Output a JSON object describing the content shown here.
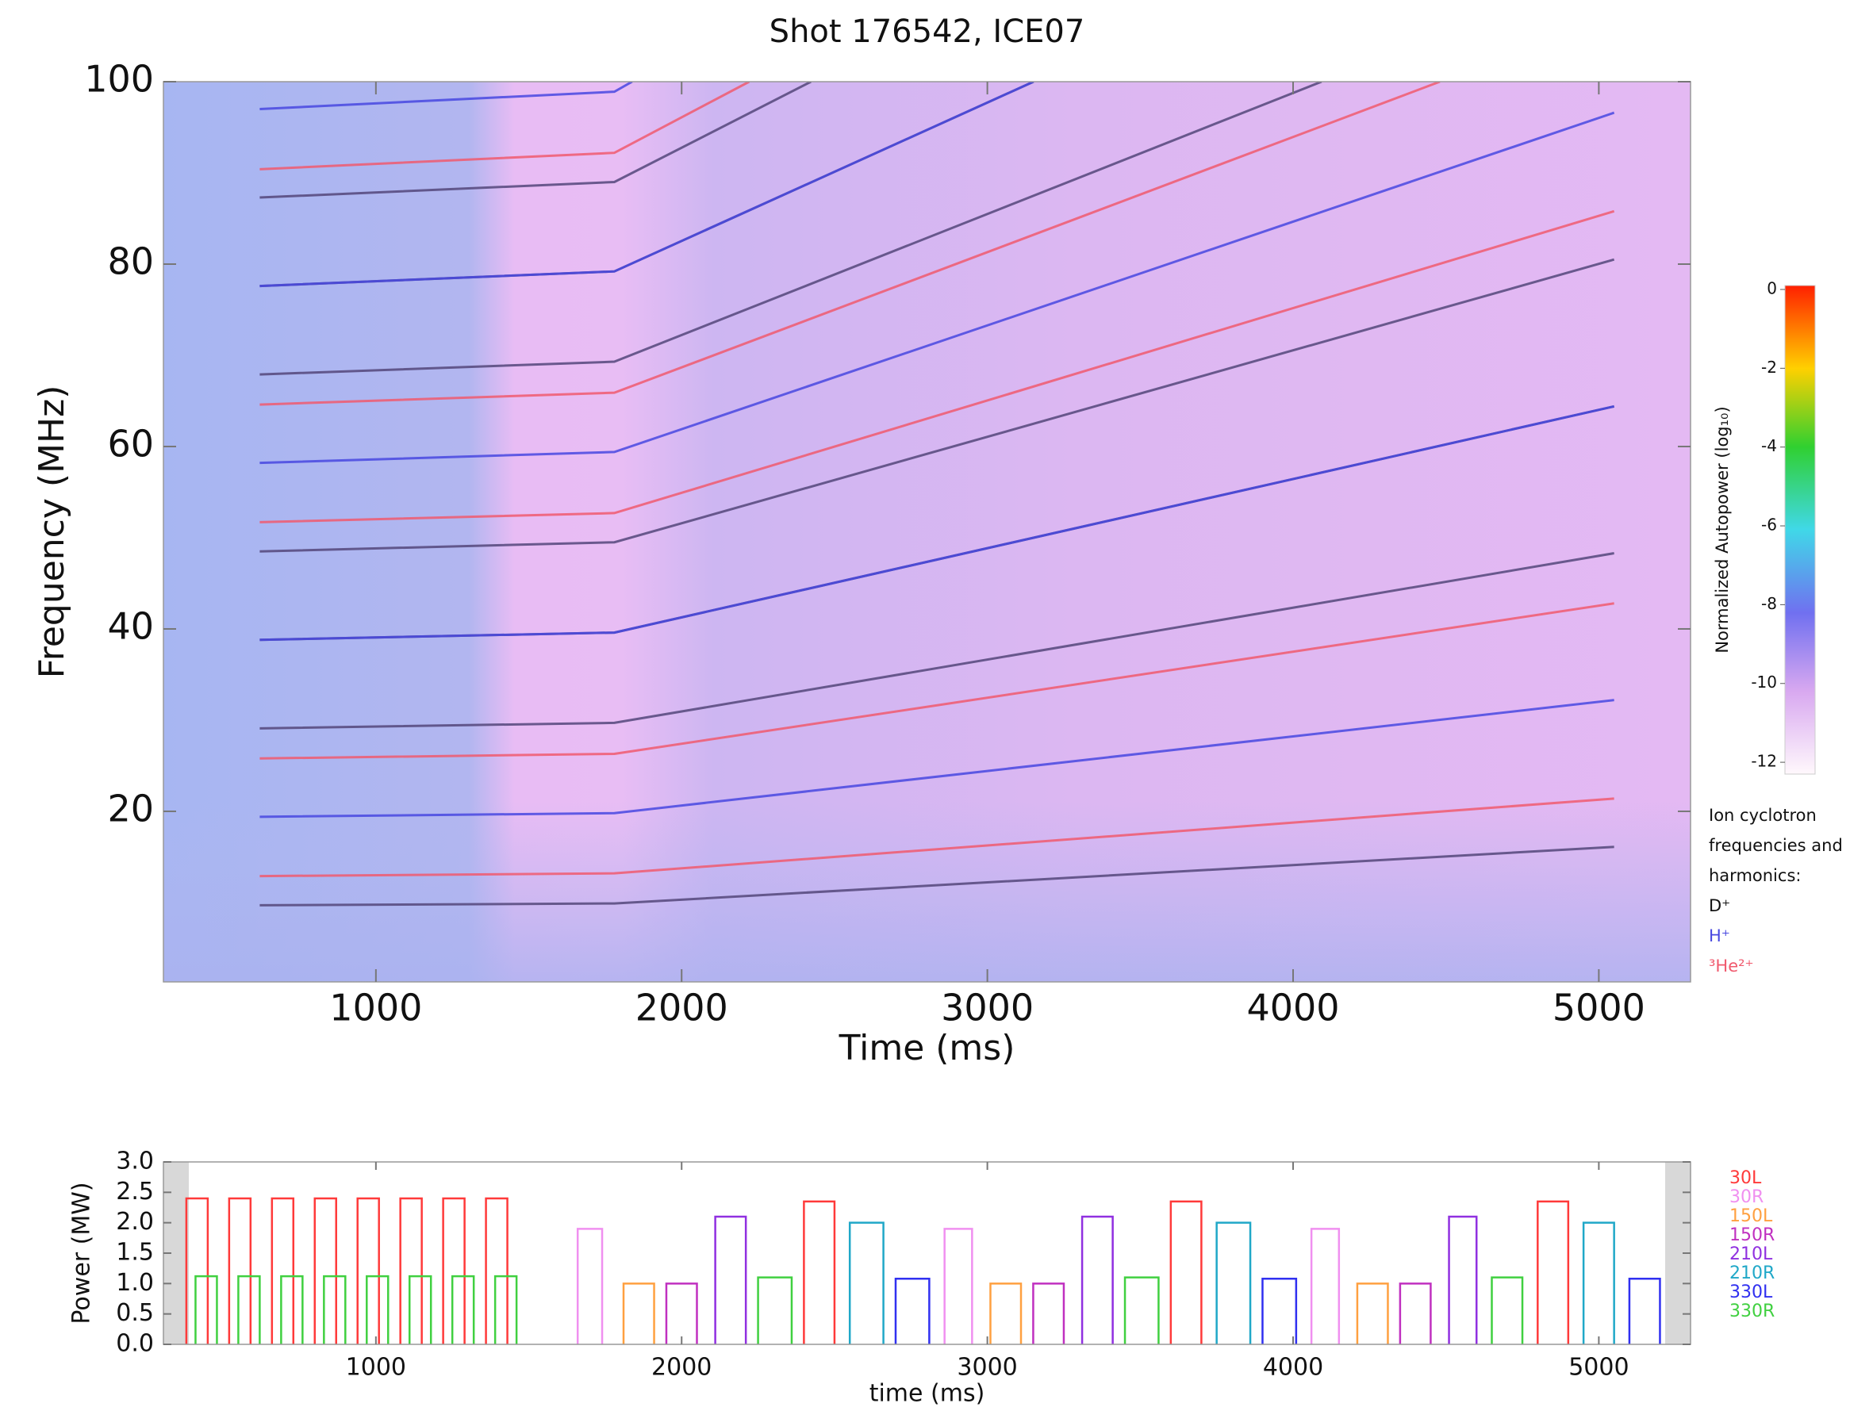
{
  "chart_data": [
    {
      "type": "spectrogram",
      "title": "Shot 176542, ICE07",
      "xlabel": "Time (ms)",
      "ylabel": "Frequency (MHz)",
      "xlim": [
        305,
        5300
      ],
      "ylim": [
        1.3,
        100
      ],
      "xticks": [
        1000,
        2000,
        3000,
        4000,
        5000
      ],
      "yticks": [
        20,
        40,
        60,
        80,
        100
      ],
      "colorbar": {
        "label": "Normalized Autopower (log₁₀)",
        "lim": [
          -12.3,
          0.1
        ],
        "ticks": [
          0,
          -2,
          -4,
          -6,
          -8,
          -10,
          -12
        ]
      },
      "legend_title": [
        "Ion cyclotron",
        "frequencies and",
        "harmonics:"
      ],
      "series": [
        {
          "name": "D⁺",
          "color": "#54467a",
          "lines": [
            {
              "x": [
                620,
                1780,
                5050
              ],
              "values": [
                9.7,
                9.9,
                16.1
              ]
            },
            {
              "x": [
                620,
                1780,
                5050
              ],
              "values": [
                29.1,
                29.7,
                48.3
              ]
            },
            {
              "x": [
                620,
                1780,
                5050
              ],
              "values": [
                38.8,
                39.6,
                64.4
              ]
            },
            {
              "x": [
                620,
                1780,
                5050
              ],
              "values": [
                48.5,
                49.5,
                80.5
              ]
            },
            {
              "x": [
                620,
                1780,
                4093
              ],
              "values": [
                67.9,
                69.3,
                100
              ]
            },
            {
              "x": [
                620,
                1780,
                3151
              ],
              "values": [
                77.6,
                79.2,
                100
              ]
            },
            {
              "x": [
                620,
                1780,
                2423
              ],
              "values": [
                87.3,
                89.0,
                100
              ]
            }
          ]
        },
        {
          "name": "H⁺",
          "color": "#4848e0",
          "lines": [
            {
              "x": [
                620,
                1780,
                5050
              ],
              "values": [
                19.4,
                19.8,
                32.2
              ]
            },
            {
              "x": [
                620,
                1780,
                5050
              ],
              "values": [
                38.8,
                39.6,
                64.4
              ]
            },
            {
              "x": [
                620,
                1780,
                5050
              ],
              "values": [
                58.2,
                59.4,
                96.6
              ]
            },
            {
              "x": [
                620,
                1780,
                3151
              ],
              "values": [
                77.6,
                79.2,
                100
              ]
            },
            {
              "x": [
                620,
                1780,
                1838
              ],
              "values": [
                97.0,
                98.9,
                100
              ]
            }
          ]
        },
        {
          "name": "³He²⁺",
          "color": "#f05a6e",
          "lines": [
            {
              "x": [
                620,
                1780,
                5050
              ],
              "values": [
                12.9,
                13.2,
                21.4
              ]
            },
            {
              "x": [
                620,
                1780,
                5050
              ],
              "values": [
                25.8,
                26.3,
                42.8
              ]
            },
            {
              "x": [
                620,
                1780,
                5050
              ],
              "values": [
                51.7,
                52.7,
                85.8
              ]
            },
            {
              "x": [
                620,
                1780,
                4480
              ],
              "values": [
                64.6,
                65.9,
                100
              ]
            },
            {
              "x": [
                620,
                1780,
                2221
              ],
              "values": [
                90.4,
                92.2,
                100
              ]
            }
          ]
        }
      ]
    },
    {
      "type": "pulse",
      "xlabel": "time (ms)",
      "ylabel": "Power (MW)",
      "xlim": [
        305,
        5300
      ],
      "ylim": [
        0,
        3
      ],
      "xticks": [
        1000,
        2000,
        3000,
        4000,
        5000
      ],
      "yticks": [
        {
          "value": 0,
          "label": "0.0"
        },
        {
          "value": 0.5,
          "label": "0.5"
        },
        {
          "value": 1,
          "label": "1.0"
        },
        {
          "value": 1.5,
          "label": "1.5"
        },
        {
          "value": 2,
          "label": "2.0"
        },
        {
          "value": 2.5,
          "label": "2.5"
        },
        {
          "value": 3,
          "label": "3.0"
        }
      ],
      "series": [
        {
          "name": "30L",
          "color": "#ff3a3a",
          "on": [
            [
              380,
              450
            ],
            [
              520,
              590
            ],
            [
              660,
              730
            ],
            [
              800,
              870
            ],
            [
              940,
              1010
            ],
            [
              1080,
              1150
            ],
            [
              1220,
              1290
            ],
            [
              1360,
              1430
            ],
            [
              2400,
              2500
            ],
            [
              3600,
              3700
            ],
            [
              4800,
              4900
            ]
          ],
          "values": [
            2.4,
            2.4,
            2.4,
            2.4,
            2.4,
            2.4,
            2.4,
            2.4,
            2.35,
            2.35,
            2.35
          ]
        },
        {
          "name": "30R",
          "color": "#f090f0",
          "on": [
            [
              1660,
              1740
            ],
            [
              2860,
              2950
            ],
            [
              4060,
              4150
            ]
          ],
          "values": [
            1.9,
            1.9,
            1.9
          ]
        },
        {
          "name": "150L",
          "color": "#ffa040",
          "on": [
            [
              1810,
              1910
            ],
            [
              3010,
              3110
            ],
            [
              4210,
              4310
            ]
          ],
          "values": [
            1.0,
            1.0,
            1.0
          ]
        },
        {
          "name": "150R",
          "color": "#c030c0",
          "on": [
            [
              1950,
              2050
            ],
            [
              3150,
              3250
            ],
            [
              4350,
              4450
            ]
          ],
          "values": [
            1.0,
            1.0,
            1.0
          ]
        },
        {
          "name": "210L",
          "color": "#9030e0",
          "on": [
            [
              2110,
              2210
            ],
            [
              3310,
              3410
            ],
            [
              4510,
              4600
            ]
          ],
          "values": [
            2.1,
            2.1,
            2.1
          ]
        },
        {
          "name": "210R",
          "color": "#20a8c8",
          "on": [
            [
              2550,
              2660
            ],
            [
              3750,
              3860
            ],
            [
              4950,
              5050
            ]
          ],
          "values": [
            2.0,
            2.0,
            2.0
          ]
        },
        {
          "name": "330L",
          "color": "#3030f0",
          "on": [
            [
              2700,
              2810
            ],
            [
              3900,
              4010
            ],
            [
              5100,
              5200
            ]
          ],
          "values": [
            1.08,
            1.08,
            1.08
          ]
        },
        {
          "name": "330R",
          "color": "#40d040",
          "on": [
            [
              410,
              480
            ],
            [
              550,
              620
            ],
            [
              690,
              760
            ],
            [
              830,
              900
            ],
            [
              970,
              1040
            ],
            [
              1110,
              1180
            ],
            [
              1250,
              1320
            ],
            [
              1390,
              1460
            ],
            [
              2250,
              2360
            ],
            [
              3450,
              3560
            ],
            [
              4650,
              4750
            ]
          ],
          "values": [
            1.12,
            1.12,
            1.12,
            1.12,
            1.12,
            1.12,
            1.12,
            1.12,
            1.1,
            1.1,
            1.1
          ]
        }
      ]
    }
  ]
}
